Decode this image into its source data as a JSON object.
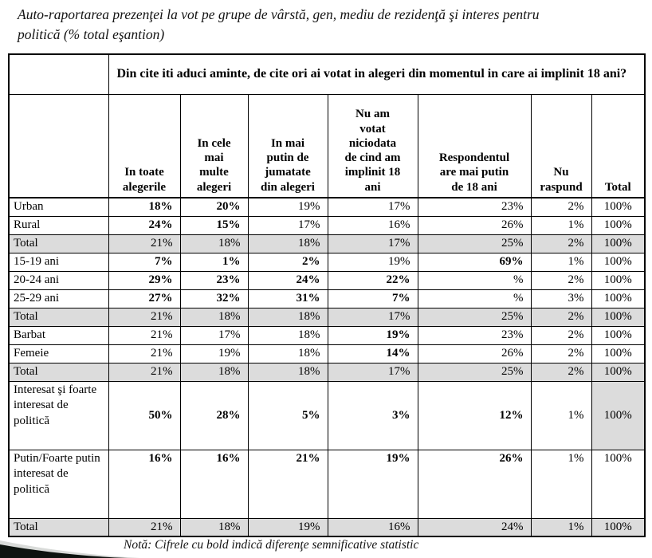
{
  "title": "Auto-raportarea prezenţei la vot pe grupe de  vârstă, gen, mediu de rezidenţă şi interes pentru\npolitică (% total eşantion)",
  "note": "Notă: Cifrele cu bold indică diferenţe semnificative statistic",
  "colors": {
    "total_row_bg": "#dcdcdc",
    "border": "#000000",
    "swoosh_dark": "#0d130f",
    "swoosh_light": "#b9beba"
  },
  "table": {
    "question": "Din cite iti aduci aminte, de cite ori ai votat in alegeri din momentul in care ai implinit 18 ani?",
    "columns": [
      "In toate\nalegerile",
      "In cele\nmai\nmulte\nalegeri",
      "In mai\nputin de\njumatate\ndin alegeri",
      "Nu am\nvotat\nniciodata\nde cind am\nimplinit 18\nani",
      "Respondentul\nare mai putin\nde 18 ani",
      "Nu\nraspund",
      "Total"
    ],
    "rows": [
      {
        "label": "Urban",
        "values": [
          "18%",
          "20%",
          "19%",
          "17%",
          "23%",
          "2%",
          "100%"
        ],
        "bold": [
          true,
          true,
          false,
          false,
          false,
          false,
          false
        ],
        "gray": false
      },
      {
        "label": "Rural",
        "values": [
          "24%",
          "15%",
          "17%",
          "16%",
          "26%",
          "1%",
          "100%"
        ],
        "bold": [
          true,
          true,
          false,
          false,
          false,
          false,
          false
        ],
        "gray": false
      },
      {
        "label": "Total",
        "values": [
          "21%",
          "18%",
          "18%",
          "17%",
          "25%",
          "2%",
          "100%"
        ],
        "bold": [
          false,
          false,
          false,
          false,
          false,
          false,
          false
        ],
        "gray": true
      },
      {
        "label": "15-19 ani",
        "values": [
          "7%",
          "1%",
          "2%",
          "19%",
          "69%",
          "1%",
          "100%"
        ],
        "bold": [
          true,
          true,
          true,
          false,
          true,
          false,
          false
        ],
        "gray": false
      },
      {
        "label": "20-24 ani",
        "values": [
          "29%",
          "23%",
          "24%",
          "22%",
          "%",
          "2%",
          "100%"
        ],
        "bold": [
          true,
          true,
          true,
          true,
          false,
          false,
          false
        ],
        "gray": false
      },
      {
        "label": "25-29 ani",
        "values": [
          "27%",
          "32%",
          "31%",
          "7%",
          "%",
          "3%",
          "100%"
        ],
        "bold": [
          true,
          true,
          true,
          true,
          false,
          false,
          false
        ],
        "gray": false
      },
      {
        "label": "Total",
        "values": [
          "21%",
          "18%",
          "18%",
          "17%",
          "25%",
          "2%",
          "100%"
        ],
        "bold": [
          false,
          false,
          false,
          false,
          false,
          false,
          false
        ],
        "gray": true
      },
      {
        "label": "Barbat",
        "values": [
          "21%",
          "17%",
          "18%",
          "19%",
          "23%",
          "2%",
          "100%"
        ],
        "bold": [
          false,
          false,
          false,
          true,
          false,
          false,
          false
        ],
        "gray": false
      },
      {
        "label": "Femeie",
        "values": [
          "21%",
          "19%",
          "18%",
          "14%",
          "26%",
          "2%",
          "100%"
        ],
        "bold": [
          false,
          false,
          false,
          true,
          false,
          false,
          false
        ],
        "gray": false
      },
      {
        "label": "Total",
        "values": [
          "21%",
          "18%",
          "18%",
          "17%",
          "25%",
          "2%",
          "100%"
        ],
        "bold": [
          false,
          false,
          false,
          false,
          false,
          false,
          false
        ],
        "gray": true
      },
      {
        "label": "Interesat şi foarte interesat de politică",
        "values": [
          "50%",
          "28%",
          "5%",
          "3%",
          "12%",
          "1%",
          "100%"
        ],
        "bold": [
          true,
          true,
          true,
          true,
          true,
          false,
          false
        ],
        "gray": false,
        "tall": true,
        "grayTotal": true
      },
      {
        "label": "Putin/Foarte putin interesat de politică",
        "values": [
          "16%",
          "16%",
          "21%",
          "19%",
          "26%",
          "1%",
          "100%"
        ],
        "bold": [
          true,
          true,
          true,
          true,
          true,
          false,
          false
        ],
        "gray": false,
        "tall": true,
        "topAlign": true
      },
      {
        "label": "Total",
        "values": [
          "21%",
          "18%",
          "19%",
          "16%",
          "24%",
          "1%",
          "100%"
        ],
        "bold": [
          false,
          false,
          false,
          false,
          false,
          false,
          false
        ],
        "gray": true
      }
    ]
  }
}
